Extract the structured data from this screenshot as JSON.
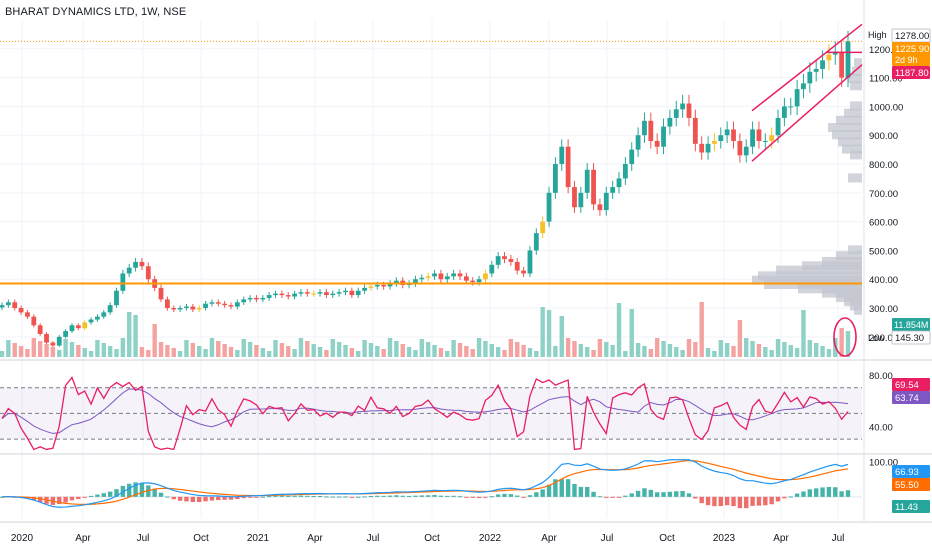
{
  "title": "BHARAT DYNAMICS LTD, 1W, NSE",
  "colors": {
    "up": "#26a69a",
    "down": "#ef5350",
    "up_alt": "#f5c02c",
    "vol_up": "#8ed1c6",
    "vol_down": "#f4a3a0",
    "channel": "#e91e63",
    "support": "#ff9800",
    "rsi": "#e91e63",
    "rsi_ma": "#7e57c2",
    "macd": "#2196f3",
    "signal": "#ff6d00",
    "hist_up": "#26a69a",
    "hist_down": "#ef5350",
    "grid": "#f0f3fa",
    "axis_text": "#131722"
  },
  "chart_data": [
    {
      "type": "candlestick",
      "title": "BHARAT DYNAMICS LTD, 1W, NSE",
      "xlabels": [
        "2020",
        "Apr",
        "Jul",
        "Oct",
        "2021",
        "Apr",
        "Jul",
        "Oct",
        "2022",
        "Apr",
        "Jul",
        "Oct",
        "2023",
        "Apr",
        "Jul"
      ],
      "y_ticks": [
        "1200.00",
        "1100.00",
        "1000.00",
        "900.00",
        "800.00",
        "700.00",
        "600.00",
        "500.00",
        "400.00",
        "300.00",
        "200.00"
      ],
      "ylim": [
        130,
        1300
      ],
      "price_labels": {
        "high_label": "High",
        "high_value": "1278.00",
        "last_value": "1225.90",
        "countdown": "2d 9h",
        "channel_value": "1187.80",
        "volume_value": "11.854M",
        "low_label": "Low",
        "low_value": "145.30"
      },
      "annotations": {
        "support_level": 385,
        "dotted_line_level": 1225.9,
        "channel": {
          "upper": [
            [
              "2023-03",
              985
            ],
            [
              "2023-07",
              1240
            ]
          ],
          "lower": [
            [
              "2023-03",
              810
            ],
            [
              "2023-07",
              1105
            ]
          ]
        },
        "horizontal_segment": {
          "level": 1187.8,
          "from": "2023-06",
          "to": "2023-07"
        }
      },
      "weekly_closes": [
        310,
        320,
        300,
        285,
        270,
        240,
        210,
        180,
        170,
        200,
        220,
        240,
        230,
        250,
        260,
        270,
        285,
        310,
        360,
        420,
        440,
        460,
        445,
        400,
        370,
        330,
        300,
        295,
        300,
        305,
        295,
        300,
        315,
        320,
        315,
        310,
        305,
        320,
        330,
        335,
        330,
        335,
        345,
        350,
        345,
        340,
        350,
        355,
        350,
        350,
        355,
        345,
        350,
        355,
        360,
        345,
        360,
        370,
        375,
        380,
        375,
        385,
        395,
        380,
        385,
        400,
        405,
        410,
        420,
        400,
        410,
        420,
        410,
        395,
        390,
        400,
        420,
        450,
        480,
        470,
        460,
        430,
        420,
        500,
        560,
        600,
        700,
        800,
        860,
        720,
        650,
        700,
        780,
        660,
        640,
        700,
        720,
        750,
        800,
        850,
        900,
        950,
        880,
        860,
        930,
        960,
        990,
        1010,
        960,
        870,
        840,
        870,
        880,
        900,
        920,
        880,
        830,
        860,
        920,
        880,
        880,
        900,
        960,
        1000,
        1000,
        1060,
        1080,
        1120,
        1130,
        1160,
        1180,
        1190,
        1100,
        1226
      ],
      "volume_profile": "right-aligned horizontal histogram"
    },
    {
      "type": "line",
      "title": "RSI",
      "y_ticks": [
        "80.00",
        "40.00"
      ],
      "ylim": [
        20,
        90
      ],
      "levels": [
        70,
        50,
        30
      ],
      "values": {
        "rsi": "69.54",
        "ma": "63.74"
      }
    },
    {
      "type": "line",
      "title": "MACD",
      "y_ticks": [
        "100.00"
      ],
      "values": {
        "macd": "66.93",
        "signal": "55.50",
        "hist": "11.43"
      },
      "ylim": [
        -60,
        110
      ]
    }
  ]
}
